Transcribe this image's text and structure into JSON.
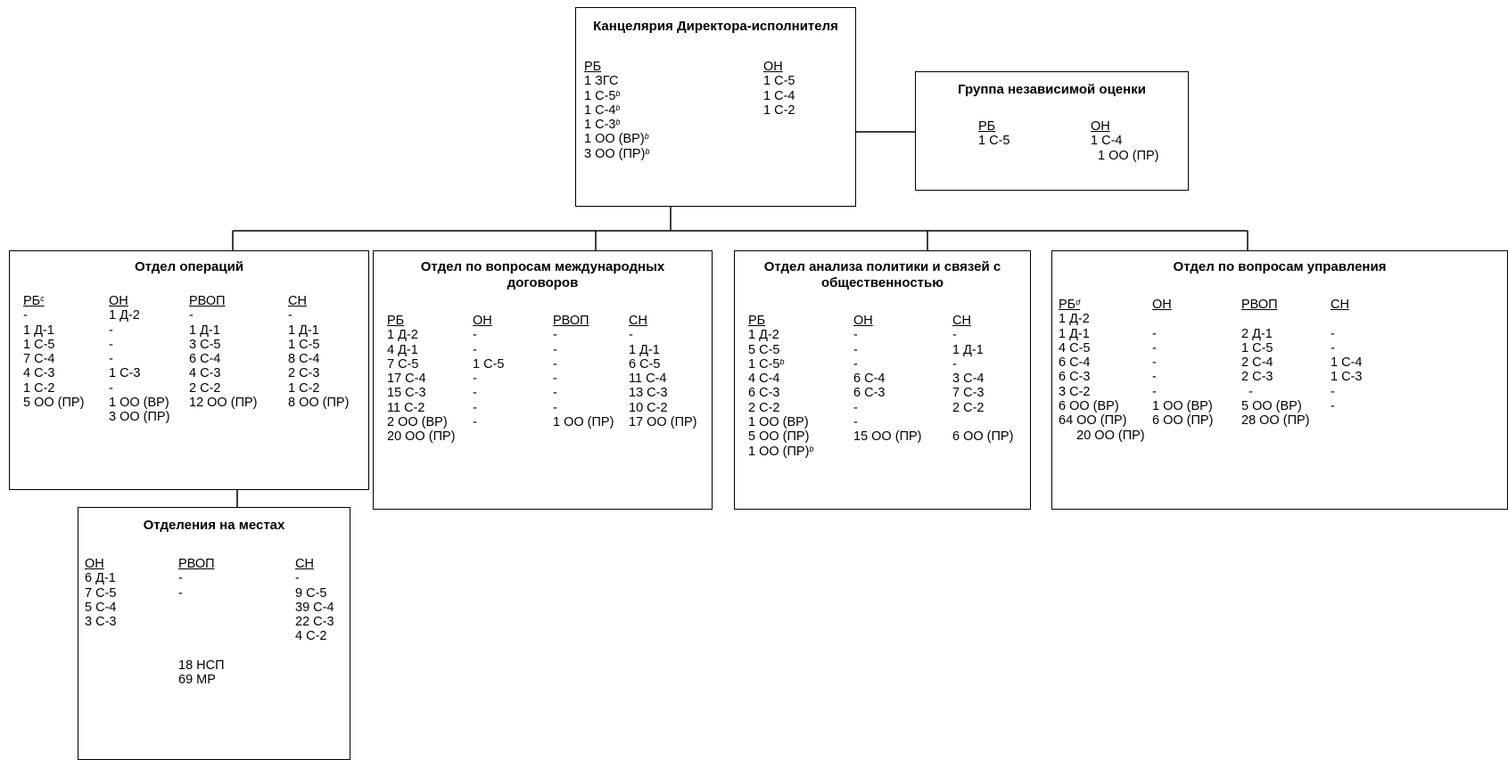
{
  "units": [
    {
      "id": "executive_office",
      "title": "Канцелярия Директора-исполнителя",
      "columns": [
        {
          "header": "РБ",
          "lines": [
            "1 ЗГС",
            "1 С-5^b",
            "1 С-4^b",
            "1 С-3^b",
            "1 ОО (ВР)^b",
            "3 ОО (ПР)^b"
          ]
        },
        {
          "header": "ОН",
          "lines": [
            "1 С-5",
            "1 С-4",
            "1 С-2"
          ]
        }
      ]
    },
    {
      "id": "evaluation_group",
      "title": "Группа независимой оценки",
      "columns": [
        {
          "header": "РБ",
          "lines": [
            "1 С-5"
          ]
        },
        {
          "header": "ОН",
          "lines": [
            "1 С-4",
            "  1 ОО (ПР)"
          ]
        }
      ]
    },
    {
      "id": "operations",
      "title": "Отдел операций",
      "columns": [
        {
          "header": "РБ^c",
          "lines": [
            "-",
            "1 Д-1",
            "1 С-5",
            "7 С-4",
            "4 С-3",
            "1 С-2",
            "5 ОО (ПР)"
          ]
        },
        {
          "header": "ОН",
          "lines": [
            "1 Д-2",
            "-",
            "-",
            "-",
            "1 С-3",
            "-",
            "1 ОО (ВР)",
            "3 ОО (ПР)"
          ]
        },
        {
          "header": "РВОП",
          "lines": [
            "-",
            "1 Д-1",
            "3 С-5",
            "6 С-4",
            "4 С-3",
            "2 С-2",
            "12 ОО (ПР)"
          ]
        },
        {
          "header": "СН",
          "lines": [
            "-",
            "1 Д-1",
            "1 С-5",
            "8 С-4",
            "2 С-3",
            "1 С-2",
            "8 ОО (ПР)"
          ]
        }
      ]
    },
    {
      "id": "treaties",
      "title": "Отдел по вопросам международных договоров",
      "columns": [
        {
          "header": "РБ",
          "lines": [
            "1 Д-2",
            "4 Д-1",
            "7 С-5",
            "17 С-4",
            "15 С-3",
            "11 С-2",
            "2 ОО (ВР)",
            "20 ОО (ПР)"
          ]
        },
        {
          "header": "ОН",
          "lines": [
            "-",
            "-",
            "1 С-5",
            "-",
            "-",
            "-",
            "-"
          ]
        },
        {
          "header": "РВОП",
          "lines": [
            "-",
            "-",
            "-",
            "-",
            "-",
            "-",
            "1 ОО (ПР)"
          ]
        },
        {
          "header": "СН",
          "lines": [
            "-",
            "1 Д-1",
            "6 С-5",
            "11 С-4",
            "13 С-3",
            "10 С-2",
            "17 ОО (ПР)"
          ]
        }
      ]
    },
    {
      "id": "policy",
      "title": "Отдел анализа политики и связей с общественностью",
      "columns": [
        {
          "header": "РБ",
          "lines": [
            "1 Д-2",
            "5 С-5",
            "1 С-5^b",
            "4 С-4",
            "6 С-3",
            "2 С-2",
            "1 ОО (ВР)",
            "5 ОО (ПР)",
            "1 ОО (ПР)^b"
          ]
        },
        {
          "header": "ОН",
          "lines": [
            "-",
            "-",
            "-",
            "6 С-4",
            "6 С-3",
            "-",
            "-",
            "15 ОО (ПР)"
          ]
        },
        {
          "header": "СН",
          "lines": [
            "-",
            "1 Д-1",
            "-",
            "3 С-4",
            "7 С-3",
            "2 С-2",
            "",
            "6 ОО (ПР)"
          ]
        }
      ]
    },
    {
      "id": "management",
      "title": "Отдел по вопросам управления",
      "columns": [
        {
          "header": "РБ^d",
          "lines": [
            "1 Д-2",
            "1 Д-1",
            "4 С-5",
            "6 С-4",
            "6 С-3",
            "3 С-2",
            "6 ОО (ВР)",
            "64 ОО (ПР)",
            "     20 ОО (ПР)"
          ]
        },
        {
          "header": "ОН",
          "lines": [
            "",
            "-",
            "-",
            "-",
            "-",
            "-",
            "1 ОО (ВР)",
            "6 ОО (ПР)"
          ]
        },
        {
          "header": "РВОП",
          "lines": [
            "",
            "2 Д-1",
            "1 С-5",
            "2 С-4",
            "2 С-3",
            "  -",
            "5 ОО (ВР)",
            "28 ОО (ПР)"
          ]
        },
        {
          "header": "СН",
          "lines": [
            "",
            "-",
            "-",
            "1 С-4",
            "1 С-3",
            "-",
            "-"
          ]
        }
      ]
    },
    {
      "id": "field_offices",
      "title": "Отделения на местах",
      "columns": [
        {
          "header": "ОН",
          "lines": [
            "6 Д-1",
            "7 С-5",
            "5 С-4",
            "3 С-3"
          ]
        },
        {
          "header": "РВОП",
          "lines": [
            "-",
            "-",
            "",
            "",
            "",
            "",
            "18 НСП",
            "69 МР"
          ]
        },
        {
          "header": "СН",
          "lines": [
            "-",
            "9 С-5",
            "39 С-4",
            "22 С-3",
            "4 С-2"
          ]
        }
      ]
    }
  ]
}
